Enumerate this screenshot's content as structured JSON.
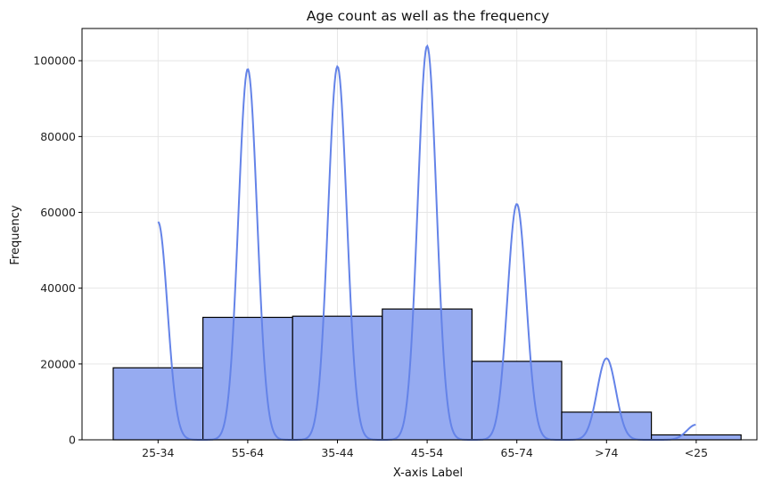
{
  "chart_data": {
    "type": "bar",
    "title": "Age count as well as the frequency",
    "xlabel": "X-axis Label",
    "ylabel": "Frequency",
    "categories": [
      "25-34",
      "55-64",
      "35-44",
      "45-54",
      "65-74",
      ">74",
      "<25"
    ],
    "values": [
      19000,
      32300,
      32600,
      34500,
      20700,
      7300,
      1300
    ],
    "ylim": [
      0,
      108500
    ],
    "yticks": [
      0,
      20000,
      40000,
      60000,
      80000,
      100000
    ],
    "grid": true,
    "legend": "none",
    "kde_peaks": [
      {
        "category": "25-34",
        "peak": 57500
      },
      {
        "category": "55-64",
        "peak": 97800
      },
      {
        "category": "35-44",
        "peak": 98500
      },
      {
        "category": "45-54",
        "peak": 103900
      },
      {
        "category": "65-74",
        "peak": 62200
      },
      {
        "category": ">74",
        "peak": 21500
      },
      {
        "category": "<25",
        "peak": 4000
      }
    ],
    "colors": {
      "bar_fill": "#96abf1",
      "bar_edge": "#000000",
      "kde_line": "#6483e8",
      "grid": "#e6e6e6"
    }
  }
}
